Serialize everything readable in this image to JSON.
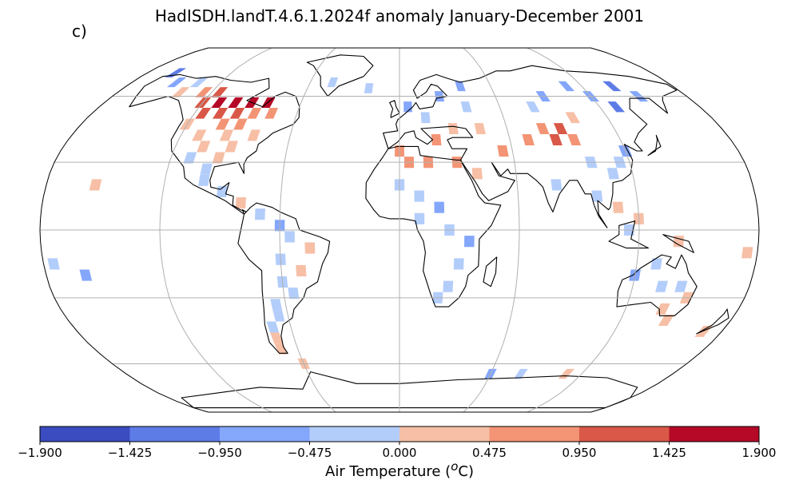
{
  "title": "HadISDH.landT.4.6.1.2024f anomaly January-December 2001",
  "panel_label": "c)",
  "map": {
    "projection": "Robinson",
    "graticule": true,
    "coastlines": true,
    "cell_size_deg": 5
  },
  "colorbar": {
    "label_text": "Air Temperature (",
    "label_sup": "o",
    "label_unit": "C)",
    "min": -1.9,
    "max": 1.9,
    "ticks": [
      "−1.900",
      "−1.425",
      "−0.950",
      "−0.475",
      "0.000",
      "0.475",
      "0.950",
      "1.425",
      "1.900"
    ],
    "colors": [
      "#3a4cc0",
      "#5d7ce6",
      "#84a7fc",
      "#b3cdfb",
      "#f6bfa6",
      "#f39475",
      "#d95847",
      "#b50927"
    ]
  },
  "anomaly_cells": [
    {
      "lat": 72,
      "lon": -160,
      "v": -1.2
    },
    {
      "lat": 67,
      "lon": -150,
      "v": -0.8
    },
    {
      "lat": 67,
      "lon": -135,
      "v": -0.3
    },
    {
      "lat": 62,
      "lon": -140,
      "v": 0.3
    },
    {
      "lat": 62,
      "lon": -125,
      "v": 0.8
    },
    {
      "lat": 62,
      "lon": -115,
      "v": 1.1
    },
    {
      "lat": 57,
      "lon": -120,
      "v": 1.2
    },
    {
      "lat": 57,
      "lon": -110,
      "v": 1.6
    },
    {
      "lat": 57,
      "lon": -100,
      "v": 1.7
    },
    {
      "lat": 57,
      "lon": -90,
      "v": 1.5
    },
    {
      "lat": 57,
      "lon": -80,
      "v": 1.7
    },
    {
      "lat": 52,
      "lon": -115,
      "v": 1.2
    },
    {
      "lat": 52,
      "lon": -105,
      "v": 1.1
    },
    {
      "lat": 52,
      "lon": -95,
      "v": 1.3
    },
    {
      "lat": 52,
      "lon": -85,
      "v": 0.9
    },
    {
      "lat": 52,
      "lon": -75,
      "v": 0.7
    },
    {
      "lat": 47,
      "lon": -120,
      "v": 0.4
    },
    {
      "lat": 47,
      "lon": -100,
      "v": 0.6
    },
    {
      "lat": 47,
      "lon": -90,
      "v": 0.5
    },
    {
      "lat": 42,
      "lon": -110,
      "v": 0.3
    },
    {
      "lat": 42,
      "lon": -95,
      "v": 0.2
    },
    {
      "lat": 42,
      "lon": -80,
      "v": 0.3
    },
    {
      "lat": 37,
      "lon": -105,
      "v": 0.2
    },
    {
      "lat": 37,
      "lon": -90,
      "v": 0.3
    },
    {
      "lat": 32,
      "lon": -110,
      "v": -0.3
    },
    {
      "lat": 32,
      "lon": -95,
      "v": 0.2
    },
    {
      "lat": 27,
      "lon": -100,
      "v": -0.2
    },
    {
      "lat": 22,
      "lon": -100,
      "v": -0.3
    },
    {
      "lat": 17,
      "lon": -90,
      "v": -0.4
    },
    {
      "lat": 12,
      "lon": -80,
      "v": 0.2
    },
    {
      "lat": 7,
      "lon": -70,
      "v": -0.3
    },
    {
      "lat": 2,
      "lon": -60,
      "v": -0.8
    },
    {
      "lat": -3,
      "lon": -55,
      "v": -0.4
    },
    {
      "lat": -8,
      "lon": -45,
      "v": 0.3
    },
    {
      "lat": -13,
      "lon": -60,
      "v": -0.2
    },
    {
      "lat": -18,
      "lon": -50,
      "v": 0.2
    },
    {
      "lat": -23,
      "lon": -60,
      "v": -0.3
    },
    {
      "lat": -28,
      "lon": -55,
      "v": -0.3
    },
    {
      "lat": -33,
      "lon": -65,
      "v": -0.4
    },
    {
      "lat": -38,
      "lon": -65,
      "v": -0.3
    },
    {
      "lat": -43,
      "lon": -70,
      "v": -0.3
    },
    {
      "lat": -48,
      "lon": -70,
      "v": 0.2
    },
    {
      "lat": -53,
      "lon": -70,
      "v": 0.3
    },
    {
      "lat": 67,
      "lon": -45,
      "v": -0.3
    },
    {
      "lat": 64,
      "lon": -20,
      "v": -0.3
    },
    {
      "lat": 55,
      "lon": 5,
      "v": -0.6
    },
    {
      "lat": 50,
      "lon": 15,
      "v": -0.4
    },
    {
      "lat": 60,
      "lon": 25,
      "v": -0.6
    },
    {
      "lat": 65,
      "lon": 40,
      "v": -0.7
    },
    {
      "lat": 55,
      "lon": 40,
      "v": -0.4
    },
    {
      "lat": 45,
      "lon": 30,
      "v": 0.3
    },
    {
      "lat": 45,
      "lon": 45,
      "v": 0.4
    },
    {
      "lat": 40,
      "lon": 20,
      "v": 0.6
    },
    {
      "lat": 35,
      "lon": 0,
      "v": 0.5
    },
    {
      "lat": 30,
      "lon": 5,
      "v": 0.7
    },
    {
      "lat": 30,
      "lon": 15,
      "v": 0.6
    },
    {
      "lat": 30,
      "lon": 30,
      "v": 0.5
    },
    {
      "lat": 25,
      "lon": 40,
      "v": 0.4
    },
    {
      "lat": 20,
      "lon": 0,
      "v": -0.3
    },
    {
      "lat": 15,
      "lon": 10,
      "v": -0.3
    },
    {
      "lat": 10,
      "lon": 20,
      "v": -0.6
    },
    {
      "lat": 5,
      "lon": 10,
      "v": -0.3
    },
    {
      "lat": 0,
      "lon": 25,
      "v": -0.4
    },
    {
      "lat": -5,
      "lon": 35,
      "v": -0.6
    },
    {
      "lat": -15,
      "lon": 30,
      "v": -0.4
    },
    {
      "lat": -25,
      "lon": 25,
      "v": -0.3
    },
    {
      "lat": -30,
      "lon": 20,
      "v": -0.4
    },
    {
      "lat": 35,
      "lon": 55,
      "v": 0.5
    },
    {
      "lat": 40,
      "lon": 70,
      "v": 0.6
    },
    {
      "lat": 45,
      "lon": 80,
      "v": 0.5
    },
    {
      "lat": 40,
      "lon": 85,
      "v": 1.2
    },
    {
      "lat": 45,
      "lon": 90,
      "v": 1.0
    },
    {
      "lat": 40,
      "lon": 95,
      "v": 0.6
    },
    {
      "lat": 50,
      "lon": 100,
      "v": 0.4
    },
    {
      "lat": 55,
      "lon": 80,
      "v": -0.3
    },
    {
      "lat": 60,
      "lon": 90,
      "v": -0.5
    },
    {
      "lat": 65,
      "lon": 110,
      "v": -0.7
    },
    {
      "lat": 60,
      "lon": 120,
      "v": -0.9
    },
    {
      "lat": 55,
      "lon": 130,
      "v": -1.1
    },
    {
      "lat": 65,
      "lon": 140,
      "v": -1.3
    },
    {
      "lat": 60,
      "lon": 150,
      "v": -0.9
    },
    {
      "lat": 30,
      "lon": 100,
      "v": -0.3
    },
    {
      "lat": 25,
      "lon": 110,
      "v": -0.4
    },
    {
      "lat": 30,
      "lon": 115,
      "v": -0.3
    },
    {
      "lat": 35,
      "lon": 120,
      "v": -0.5
    },
    {
      "lat": 20,
      "lon": 80,
      "v": -0.4
    },
    {
      "lat": 15,
      "lon": 100,
      "v": -0.3
    },
    {
      "lat": 10,
      "lon": 110,
      "v": 0.3
    },
    {
      "lat": 5,
      "lon": 120,
      "v": 0.4
    },
    {
      "lat": 0,
      "lon": 115,
      "v": -0.3
    },
    {
      "lat": -5,
      "lon": 140,
      "v": 0.3
    },
    {
      "lat": -15,
      "lon": 130,
      "v": -0.3
    },
    {
      "lat": -20,
      "lon": 120,
      "v": -0.8
    },
    {
      "lat": -25,
      "lon": 135,
      "v": -0.4
    },
    {
      "lat": -25,
      "lon": 145,
      "v": -0.3
    },
    {
      "lat": -30,
      "lon": 150,
      "v": 0.3
    },
    {
      "lat": -35,
      "lon": 140,
      "v": 0.4
    },
    {
      "lat": -40,
      "lon": 145,
      "v": 0.3
    },
    {
      "lat": -45,
      "lon": 170,
      "v": 0.3
    },
    {
      "lat": -10,
      "lon": 175,
      "v": 0.3
    },
    {
      "lat": -15,
      "lon": -175,
      "v": -0.3
    },
    {
      "lat": -20,
      "lon": -160,
      "v": -0.5
    },
    {
      "lat": 20,
      "lon": -155,
      "v": 0.3
    },
    {
      "lat": -60,
      "lon": -60,
      "v": 0.4
    },
    {
      "lat": -65,
      "lon": 60,
      "v": -0.7
    },
    {
      "lat": -65,
      "lon": 80,
      "v": -0.3
    },
    {
      "lat": -65,
      "lon": 110,
      "v": 0.3
    }
  ]
}
